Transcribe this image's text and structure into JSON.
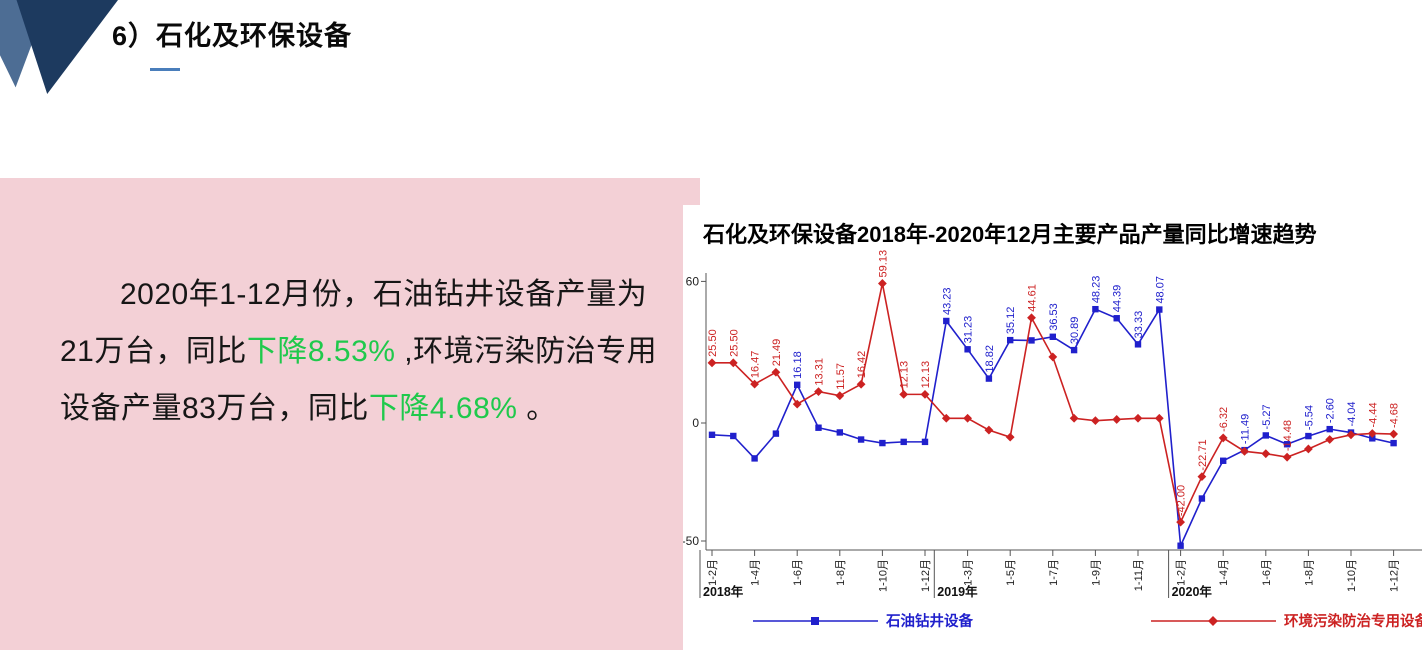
{
  "slide": {
    "title": "6）石化及环保设备",
    "paragraph": {
      "segments": [
        {
          "text": "2020年1-12月份，石油钻井设备产量为21万台，同比",
          "highlight": false
        },
        {
          "text": "下降8.53%",
          "highlight": true
        },
        {
          "text": " ,环境污染防治专用设备产量83万台，同比",
          "highlight": false
        },
        {
          "text": "下降4.68%",
          "highlight": true
        },
        {
          "text": " 。",
          "highlight": false
        }
      ],
      "highlight_color": "#1fc94c"
    }
  },
  "colors": {
    "panel_pink": "#f3d0d6",
    "underline_blue": "#4a7ebb",
    "corner_navy": "#1d3a5f",
    "corner_slate": "#4d6d94",
    "series_blue": "#2020cc",
    "series_red": "#cc2222",
    "axis_gray": "#555555"
  },
  "chart_data": {
    "type": "line",
    "title": "石化及环保设备2018年-2020年12月主要产品产量同比增速趋势",
    "ylim": [
      -55,
      65
    ],
    "yticks": [
      {
        "value": 60,
        "label": "60"
      },
      {
        "value": 0,
        "label": "0"
      },
      {
        "value": -50,
        "label": "-50"
      }
    ],
    "legend_position": "bottom",
    "grid": false,
    "categories": [
      "1-2月",
      "1-3月",
      "1-4月",
      "1-5月",
      "1-6月",
      "1-7月",
      "1-8月",
      "1-9月",
      "1-10月",
      "1-11月",
      "1-12月",
      "1-2月",
      "1-3月",
      "1-4月",
      "1-5月",
      "1-6月",
      "1-7月",
      "1-8月",
      "1-9月",
      "1-10月",
      "1-11月",
      "1-12月",
      "1-2月",
      "1-3月",
      "1-4月",
      "1-5月",
      "1-6月",
      "1-7月",
      "1-8月",
      "1-9月",
      "1-10月",
      "1-11月",
      "1-12月"
    ],
    "x_groups": [
      {
        "year": "2018年",
        "start_index": 0
      },
      {
        "year": "2019年",
        "start_index": 11
      },
      {
        "year": "2020年",
        "start_index": 22
      }
    ],
    "tick_indices": [
      0,
      2,
      4,
      6,
      8,
      10,
      12,
      14,
      16,
      18,
      20,
      22,
      24,
      26,
      28,
      30,
      32
    ],
    "tick_labels": [
      "1-2月",
      "1-4月",
      "1-6月",
      "1-8月",
      "1-10月",
      "1-12月",
      "1-3月",
      "1-5月",
      "1-7月",
      "1-9月",
      "1-11月",
      "1-2月",
      "1-4月",
      "1-6月",
      "1-8月",
      "1-10月",
      "1-12月"
    ],
    "series": [
      {
        "name": "石油钻井设备",
        "color": "#2020cc",
        "marker": "square",
        "values": [
          -5,
          -5.5,
          -15,
          -4.5,
          16.18,
          -2,
          -4,
          -7,
          -8.5,
          -8,
          -8,
          43.23,
          31.23,
          18.82,
          35.12,
          35,
          36.53,
          30.89,
          48.23,
          44.39,
          33.33,
          48.07,
          -52,
          -32,
          -16,
          -11.49,
          -5.27,
          -9,
          -5.54,
          -2.6,
          -4.04,
          -6.5,
          -8.53
        ],
        "labels": [
          null,
          null,
          null,
          null,
          "16.18",
          null,
          null,
          null,
          null,
          null,
          null,
          "43.23",
          "31.23",
          "18.82",
          "35.12",
          null,
          "36.53",
          "30.89",
          "48.23",
          "44.39",
          "33.33",
          "48.07",
          null,
          null,
          null,
          "-11.49",
          "-5.27",
          null,
          "-5.54",
          "-2.60",
          "-4.04",
          null,
          null
        ]
      },
      {
        "name": "环境污染防治专用设备",
        "color": "#cc2222",
        "marker": "diamond",
        "values": [
          25.5,
          25.5,
          16.47,
          21.49,
          8,
          13.31,
          11.57,
          16.42,
          59.13,
          12.13,
          12.13,
          2,
          2,
          -3,
          -6,
          44.61,
          28,
          2,
          1,
          1.5,
          2,
          2,
          -42,
          -22.71,
          -6.32,
          -12,
          -13,
          -14.48,
          -11,
          -7,
          -5,
          -4.44,
          -4.68
        ],
        "labels": [
          "25.50",
          "25.50",
          "16.47",
          "21.49",
          null,
          "13.31",
          "11.57",
          "16.42",
          "59.13",
          "12.13",
          "12.13",
          null,
          null,
          null,
          null,
          "44.61",
          null,
          null,
          null,
          null,
          null,
          null,
          "-42.00",
          "-22.71",
          "-6.32",
          null,
          null,
          "-14.48",
          null,
          null,
          null,
          "-4.44",
          "-4.68"
        ]
      }
    ]
  }
}
